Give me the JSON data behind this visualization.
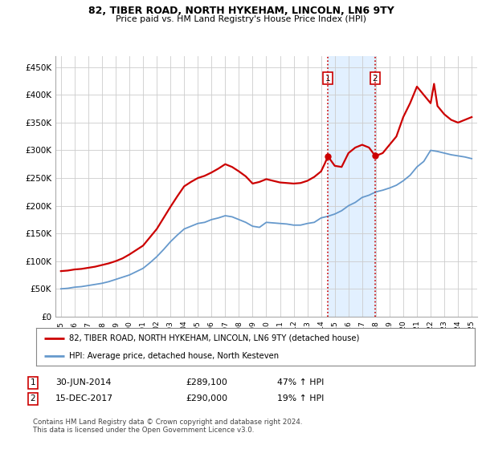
{
  "title": "82, TIBER ROAD, NORTH HYKEHAM, LINCOLN, LN6 9TY",
  "subtitle": "Price paid vs. HM Land Registry's House Price Index (HPI)",
  "ylim": [
    0,
    470000
  ],
  "yticks": [
    0,
    50000,
    100000,
    150000,
    200000,
    250000,
    300000,
    350000,
    400000,
    450000
  ],
  "ytick_labels": [
    "£0",
    "£50K",
    "£100K",
    "£150K",
    "£200K",
    "£250K",
    "£300K",
    "£350K",
    "£400K",
    "£450K"
  ],
  "legend_line1": "82, TIBER ROAD, NORTH HYKEHAM, LINCOLN, LN6 9TY (detached house)",
  "legend_line2": "HPI: Average price, detached house, North Kesteven",
  "annotation1_label": "1",
  "annotation1_date": "30-JUN-2014",
  "annotation1_price": "£289,100",
  "annotation1_hpi": "47% ↑ HPI",
  "annotation2_label": "2",
  "annotation2_date": "15-DEC-2017",
  "annotation2_price": "£290,000",
  "annotation2_hpi": "19% ↑ HPI",
  "footer": "Contains HM Land Registry data © Crown copyright and database right 2024.\nThis data is licensed under the Open Government Licence v3.0.",
  "red_color": "#cc0000",
  "blue_color": "#6699cc",
  "shade_color": "#ddeeff",
  "hpi_years": [
    1995,
    1995.5,
    1996,
    1996.5,
    1997,
    1997.5,
    1998,
    1998.5,
    1999,
    1999.5,
    2000,
    2000.5,
    2001,
    2001.5,
    2002,
    2002.5,
    2003,
    2003.5,
    2004,
    2004.5,
    2005,
    2005.5,
    2006,
    2006.5,
    2007,
    2007.5,
    2008,
    2008.5,
    2009,
    2009.5,
    2010,
    2010.5,
    2011,
    2011.5,
    2012,
    2012.5,
    2013,
    2013.5,
    2014,
    2014.5,
    2015,
    2015.5,
    2016,
    2016.5,
    2017,
    2017.5,
    2018,
    2018.5,
    2019,
    2019.5,
    2020,
    2020.5,
    2021,
    2021.5,
    2022,
    2022.5,
    2023,
    2023.5,
    2024,
    2024.5,
    2025
  ],
  "hpi_values": [
    50000,
    51000,
    53000,
    54000,
    56000,
    58000,
    60000,
    63000,
    67000,
    71000,
    75000,
    81000,
    87000,
    97000,
    108000,
    121000,
    135000,
    147000,
    158000,
    163000,
    168000,
    170000,
    175000,
    178000,
    182000,
    180000,
    175000,
    170000,
    163000,
    161000,
    170000,
    169000,
    168000,
    167000,
    165000,
    165000,
    168000,
    170000,
    178000,
    181000,
    185000,
    191000,
    200000,
    206000,
    215000,
    219000,
    225000,
    228000,
    232000,
    237000,
    245000,
    255000,
    270000,
    280000,
    300000,
    298000,
    295000,
    292000,
    290000,
    288000,
    285000
  ],
  "house_years": [
    1995,
    1995.5,
    1996,
    1996.5,
    1997,
    1997.5,
    1998,
    1998.5,
    1999,
    1999.5,
    2000,
    2000.5,
    2001,
    2001.5,
    2002,
    2002.5,
    2003,
    2003.5,
    2004,
    2004.5,
    2005,
    2005.5,
    2006,
    2006.5,
    2007,
    2007.5,
    2008,
    2008.5,
    2009,
    2009.5,
    2010,
    2010.5,
    2011,
    2011.5,
    2012,
    2012.5,
    2013,
    2013.5,
    2014,
    2014.25,
    2014.5,
    2015,
    2015.5,
    2016,
    2016.5,
    2017,
    2017.5,
    2017.95,
    2018,
    2018.5,
    2019,
    2019.5,
    2020,
    2020.5,
    2021,
    2021.5,
    2022,
    2022.25,
    2022.5,
    2023,
    2023.5,
    2024,
    2024.5,
    2025
  ],
  "house_values": [
    82000,
    83000,
    85000,
    86000,
    88000,
    90000,
    93000,
    96000,
    100000,
    105000,
    112000,
    120000,
    128000,
    143000,
    158000,
    178000,
    198000,
    217000,
    235000,
    243000,
    250000,
    254000,
    260000,
    267000,
    275000,
    270000,
    262000,
    253000,
    240000,
    243000,
    248000,
    245000,
    242000,
    241000,
    240000,
    241000,
    245000,
    252000,
    262000,
    275000,
    289100,
    272000,
    270000,
    295000,
    305000,
    310000,
    305000,
    290000,
    290000,
    295000,
    310000,
    325000,
    360000,
    385000,
    415000,
    400000,
    385000,
    420000,
    380000,
    365000,
    355000,
    350000,
    355000,
    360000
  ],
  "sale1_year": 2014.5,
  "sale1_value": 289100,
  "sale2_year": 2017.95,
  "sale2_value": 290000,
  "shade_x1": 2014.5,
  "shade_x2": 2017.95,
  "xlim_left": 1994.6,
  "xlim_right": 2025.4
}
